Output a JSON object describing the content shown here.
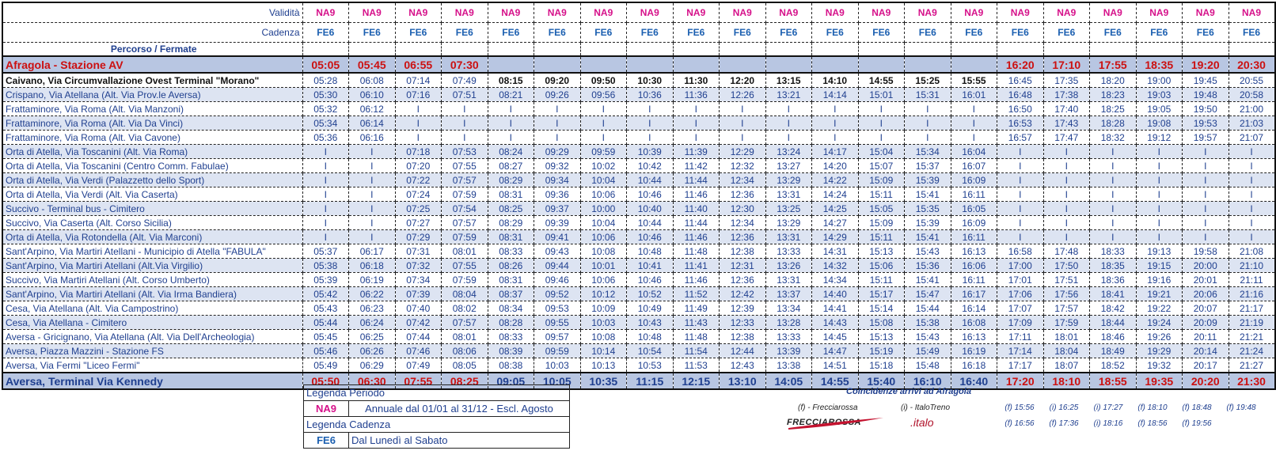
{
  "header": {
    "validita_label": "Validità",
    "cadenza_label": "Cadenza",
    "percorso_label": "Percorso / Fermate",
    "validita": [
      "NA9",
      "NA9",
      "NA9",
      "NA9",
      "NA9",
      "NA9",
      "NA9",
      "NA9",
      "NA9",
      "NA9",
      "NA9",
      "NA9",
      "NA9",
      "NA9",
      "NA9",
      "NA9",
      "NA9",
      "NA9",
      "NA9",
      "NA9",
      "NA9"
    ],
    "cadenza": [
      "FE6",
      "FE6",
      "FE6",
      "FE6",
      "FE6",
      "FE6",
      "FE6",
      "FE6",
      "FE6",
      "FE6",
      "FE6",
      "FE6",
      "FE6",
      "FE6",
      "FE6",
      "FE6",
      "FE6",
      "FE6",
      "FE6",
      "FE6",
      "FE6"
    ]
  },
  "stops": [
    {
      "name": "Afragola - Stazione AV",
      "type": "endpoint",
      "times": [
        "05:05",
        "05:45",
        "06:55",
        "07:30",
        "",
        "",
        "",
        "",
        "",
        "",
        "",
        "",
        "",
        "",
        "",
        "16:20",
        "17:10",
        "17:55",
        "18:35",
        "19:20",
        "20:30"
      ]
    },
    {
      "name": "Caivano, Via Circumvallazione Ovest Terminal \"Morano\"",
      "type": "bold",
      "times": [
        "05:28",
        "06:08",
        "07:14",
        "07:49",
        "08:15",
        "09:20",
        "09:50",
        "10:30",
        "11:30",
        "12:20",
        "13:15",
        "14:10",
        "14:55",
        "15:25",
        "15:55",
        "16:45",
        "17:35",
        "18:20",
        "19:00",
        "19:45",
        "20:55"
      ]
    },
    {
      "name": "Crispano, Via Atellana (Alt. Via Prov.le Aversa)",
      "times": [
        "05:30",
        "06:10",
        "07:16",
        "07:51",
        "08:21",
        "09:26",
        "09:56",
        "10:36",
        "11:36",
        "12:26",
        "13:21",
        "14:14",
        "15:01",
        "15:31",
        "16:01",
        "16:48",
        "17:38",
        "18:23",
        "19:03",
        "19:48",
        "20:58"
      ]
    },
    {
      "name": "Frattaminore, Via Roma (Alt. Via Manzoni)",
      "times": [
        "05:32",
        "06:12",
        "I",
        "I",
        "I",
        "I",
        "I",
        "I",
        "I",
        "I",
        "I",
        "I",
        "I",
        "I",
        "I",
        "16:50",
        "17:40",
        "18:25",
        "19:05",
        "19:50",
        "21:00"
      ]
    },
    {
      "name": "Frattaminore, Via Roma (Alt. Via Da Vinci)",
      "times": [
        "05:34",
        "06:14",
        "I",
        "I",
        "I",
        "I",
        "I",
        "I",
        "I",
        "I",
        "I",
        "I",
        "I",
        "I",
        "I",
        "16:53",
        "17:43",
        "18:28",
        "19:08",
        "19:53",
        "21:03"
      ]
    },
    {
      "name": "Frattaminore, Via Roma (Alt. Via Cavone)",
      "times": [
        "05:36",
        "06:16",
        "I",
        "I",
        "I",
        "I",
        "I",
        "I",
        "I",
        "I",
        "I",
        "I",
        "I",
        "I",
        "I",
        "16:57",
        "17:47",
        "18:32",
        "19:12",
        "19:57",
        "21:07"
      ]
    },
    {
      "name": "Orta di Atella, Via Toscanini (Alt. Via Roma)",
      "times": [
        "I",
        "I",
        "07:18",
        "07:53",
        "08:24",
        "09:29",
        "09:59",
        "10:39",
        "11:39",
        "12:29",
        "13:24",
        "14:17",
        "15:04",
        "15:34",
        "16:04",
        "I",
        "I",
        "I",
        "I",
        "I",
        "I"
      ]
    },
    {
      "name": "Orta di Atella, Via Toscanini (Centro Comm. Fabulae)",
      "times": [
        "I",
        "I",
        "07:20",
        "07:55",
        "08:27",
        "09:32",
        "10:02",
        "10:42",
        "11:42",
        "12:32",
        "13:27",
        "14:20",
        "15:07",
        "15:37",
        "16:07",
        "I",
        "I",
        "I",
        "I",
        "I",
        "I"
      ]
    },
    {
      "name": "Orta di Atella, Via Verdi (Palazzetto dello Sport)",
      "times": [
        "I",
        "I",
        "07:22",
        "07:57",
        "08:29",
        "09:34",
        "10:04",
        "10:44",
        "11:44",
        "12:34",
        "13:29",
        "14:22",
        "15:09",
        "15:39",
        "16:09",
        "I",
        "I",
        "I",
        "I",
        "I",
        "I"
      ]
    },
    {
      "name": "Orta di Atella, Via Verdi (Alt. Via Caserta)",
      "times": [
        "I",
        "I",
        "07:24",
        "07:59",
        "08:31",
        "09:36",
        "10:06",
        "10:46",
        "11:46",
        "12:36",
        "13:31",
        "14:24",
        "15:11",
        "15:41",
        "16:11",
        "I",
        "I",
        "I",
        "I",
        "I",
        "I"
      ]
    },
    {
      "name": "Succivo - Terminal bus - Cimitero",
      "times": [
        "I",
        "I",
        "07:25",
        "07:54",
        "08:25",
        "09:37",
        "10:00",
        "10:40",
        "11:40",
        "12:30",
        "13:25",
        "14:25",
        "15:05",
        "15:35",
        "16:05",
        "I",
        "I",
        "I",
        "I",
        "I",
        "I"
      ]
    },
    {
      "name": "Succivo, Via Caserta (Alt. Corso Sicilia)",
      "times": [
        "I",
        "I",
        "07:27",
        "07:57",
        "08:29",
        "09:39",
        "10:04",
        "10:44",
        "11:44",
        "12:34",
        "13:29",
        "14:27",
        "15:09",
        "15:39",
        "16:09",
        "I",
        "I",
        "I",
        "I",
        "I",
        "I"
      ]
    },
    {
      "name": "Orta di Atella, Via Rotondella (Alt. Via Marconi)",
      "times": [
        "I",
        "I",
        "07:29",
        "07:59",
        "08:31",
        "09:41",
        "10:06",
        "10:46",
        "11:46",
        "12:36",
        "13:31",
        "14:29",
        "15:11",
        "15:41",
        "16:11",
        "I",
        "I",
        "I",
        "I",
        "I",
        "I"
      ]
    },
    {
      "name": "Sant'Arpino, Via Martiri Atellani - Municipio di Atella \"FABULA\"",
      "times": [
        "05:37",
        "06:17",
        "07:31",
        "08:01",
        "08:33",
        "09:43",
        "10:08",
        "10:48",
        "11:48",
        "12:38",
        "13:33",
        "14:31",
        "15:13",
        "15:43",
        "16:13",
        "16:58",
        "17:48",
        "18:33",
        "19:13",
        "19:58",
        "21:08"
      ]
    },
    {
      "name": "Sant'Arpino, Via Martiri Atellani (Alt.Via Virgilio)",
      "times": [
        "05:38",
        "06:18",
        "07:32",
        "07:55",
        "08:26",
        "09:44",
        "10:01",
        "10:41",
        "11:41",
        "12:31",
        "13:26",
        "14:32",
        "15:06",
        "15:36",
        "16:06",
        "17:00",
        "17:50",
        "18:35",
        "19:15",
        "20:00",
        "21:10"
      ]
    },
    {
      "name": "Succivo, Via Martiri Atellani (Alt. Corso Umberto)",
      "times": [
        "05:39",
        "06:19",
        "07:34",
        "07:59",
        "08:31",
        "09:46",
        "10:06",
        "10:46",
        "11:46",
        "12:36",
        "13:31",
        "14:34",
        "15:11",
        "15:41",
        "16:11",
        "17:01",
        "17:51",
        "18:36",
        "19:16",
        "20:01",
        "21:11"
      ]
    },
    {
      "name": "Sant'Arpino, Via Martiri Atellani (Alt. Via Irma Bandiera)",
      "times": [
        "05:42",
        "06:22",
        "07:39",
        "08:04",
        "08:37",
        "09:52",
        "10:12",
        "10:52",
        "11:52",
        "12:42",
        "13:37",
        "14:40",
        "15:17",
        "15:47",
        "16:17",
        "17:06",
        "17:56",
        "18:41",
        "19:21",
        "20:06",
        "21:16"
      ]
    },
    {
      "name": "Cesa, Via Atellana (Alt. Via Campostrino)",
      "times": [
        "05:43",
        "06:23",
        "07:40",
        "08:02",
        "08:34",
        "09:53",
        "10:09",
        "10:49",
        "11:49",
        "12:39",
        "13:34",
        "14:41",
        "15:14",
        "15:44",
        "16:14",
        "17:07",
        "17:57",
        "18:42",
        "19:22",
        "20:07",
        "21:17"
      ]
    },
    {
      "name": "Cesa, Via Atellana - Cimitero",
      "times": [
        "05:44",
        "06:24",
        "07:42",
        "07:57",
        "08:28",
        "09:55",
        "10:03",
        "10:43",
        "11:43",
        "12:33",
        "13:28",
        "14:43",
        "15:08",
        "15:38",
        "16:08",
        "17:09",
        "17:59",
        "18:44",
        "19:24",
        "20:09",
        "21:19"
      ]
    },
    {
      "name": "Aversa - Gricignano, Via Atellana (Alt. Via Dell'Archeologia)",
      "times": [
        "05:45",
        "06:25",
        "07:44",
        "08:01",
        "08:33",
        "09:57",
        "10:08",
        "10:48",
        "11:48",
        "12:38",
        "13:33",
        "14:45",
        "15:13",
        "15:43",
        "16:13",
        "17:11",
        "18:01",
        "18:46",
        "19:26",
        "20:11",
        "21:21"
      ]
    },
    {
      "name": "Aversa, Piazza Mazzini - Stazione FS",
      "times": [
        "05:46",
        "06:26",
        "07:46",
        "08:06",
        "08:39",
        "09:59",
        "10:14",
        "10:54",
        "11:54",
        "12:44",
        "13:39",
        "14:47",
        "15:19",
        "15:49",
        "16:19",
        "17:14",
        "18:04",
        "18:49",
        "19:29",
        "20:14",
        "21:24"
      ]
    },
    {
      "name": "Aversa, Via Fermi \"Liceo Fermi\"",
      "times": [
        "05:49",
        "06:29",
        "07:49",
        "08:05",
        "08:38",
        "10:03",
        "10:13",
        "10:53",
        "11:53",
        "12:43",
        "13:38",
        "14:51",
        "15:18",
        "15:48",
        "16:18",
        "17:17",
        "18:07",
        "18:52",
        "19:32",
        "20:17",
        "21:27"
      ]
    },
    {
      "name": "Aversa, Terminal Via Kennedy",
      "type": "dest",
      "times": [
        "05:50",
        "06:30",
        "07:55",
        "08:25",
        "09:05",
        "10:05",
        "10:35",
        "11:15",
        "12:15",
        "13:10",
        "14:05",
        "14:55",
        "15:40",
        "16:10",
        "16:40",
        "17:20",
        "18:10",
        "18:55",
        "19:35",
        "20:20",
        "21:30"
      ]
    }
  ],
  "legend": {
    "periodo_title": "Legenda Periodo",
    "periodo_code": "NA9",
    "periodo_desc": "Annuale dal 01/01 al 31/12 - Escl. Agosto",
    "cadenza_title": "Legenda Cadenza",
    "cadenza_code": "FE6",
    "cadenza_desc": "Dal Lunedì al Sabato"
  },
  "coincidenze": {
    "title": "Coincidenze arrivi ad Afragola",
    "frecciarossa_label": "(f) - Frecciarossa",
    "italo_label": "(i) - ItaloTreno",
    "frecciarossa_logo": "FRECCIAROSSA",
    "italo_logo": ".italo",
    "row1": [
      "(f) 15:56",
      "(i) 16:25",
      "(i) 17:27",
      "(f) 18:10",
      "(f) 18:48",
      "(f) 19:48"
    ],
    "row2": [
      "(f) 16:56",
      "(f) 17:36",
      "(i) 18:16",
      "(f) 18:56",
      "(f) 19:56"
    ]
  },
  "colors": {
    "pink": "#d6118a",
    "blue": "#1b5fb0",
    "red": "#cc1010",
    "band": "#b8c6e2",
    "stripe": "#dde4f2"
  }
}
